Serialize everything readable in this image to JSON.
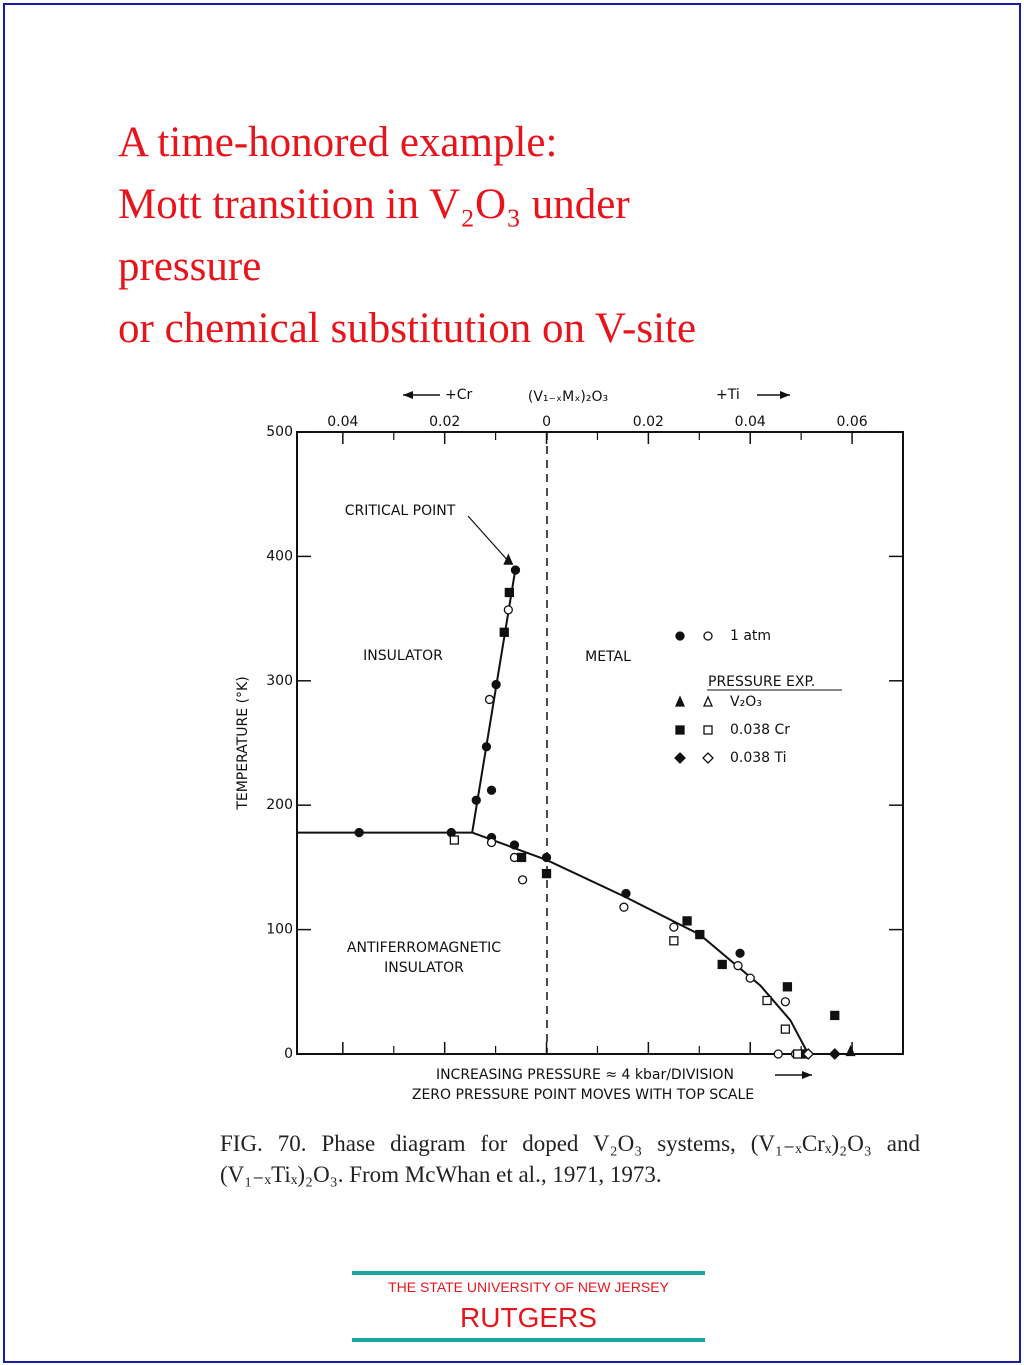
{
  "title_lines": [
    "A time-honored example:",
    "Mott transition in V₂O₃ under",
    "pressure",
    "or chemical substitution on V-site"
  ],
  "chart_data": {
    "type": "scatter",
    "header": [
      "+Cr",
      "(V₁₋ₓMₓ)₂O₃",
      "+Ti"
    ],
    "y_label": "TEMPERATURE (°K)",
    "x_label_lines": [
      "INCREASING PRESSURE ≈ 4 kbar/DIVISION",
      "ZERO PRESSURE POINT MOVES WITH TOP SCALE"
    ],
    "annotations": [
      "CRITICAL POINT",
      "INSULATOR",
      "METAL",
      "ANTIFERROMAGNETIC",
      "INSULATOR"
    ],
    "legend_title": "PRESSURE EXP.",
    "xlim": [
      -0.049,
      0.07
    ],
    "xticks": [
      {
        "value": -0.04,
        "label": "0.04"
      },
      {
        "value": -0.02,
        "label": "0.02"
      },
      0,
      0.02,
      0.04,
      0.06
    ],
    "xminor": [
      -0.03,
      -0.01,
      0.01,
      0.03,
      0.05
    ],
    "ylim": [
      0,
      500
    ],
    "yticks": [
      0,
      100,
      200,
      300,
      400,
      500
    ],
    "boundaries": [
      {
        "x": [
          -0.049,
          -0.0146
        ],
        "values": [
          178,
          178
        ]
      },
      {
        "x": [
          -0.0146,
          -0.0061
        ],
        "values": [
          178,
          390
        ]
      },
      {
        "x": [
          -0.0146,
          0,
          0.0156,
          0.0301,
          0.042,
          0.0479,
          0.0514
        ],
        "values": [
          178,
          156,
          126,
          96,
          55,
          27,
          0
        ]
      }
    ],
    "series": [
      {
        "name": "1 atm",
        "marker": "circle",
        "color": "#111",
        "x": [
          -0.0368,
          -0.0187,
          -0.0061,
          -0.0099,
          -0.0118,
          -0.0108,
          -0.0138,
          -0.0108,
          -0.0063,
          0,
          0.0156,
          0.038
        ],
        "values": [
          178,
          178,
          389,
          297,
          247,
          212,
          204,
          174,
          168,
          158,
          129,
          81
        ],
        "x_open": [
          -0.0075,
          -0.0112,
          -0.0108,
          -0.0063,
          -0.0047,
          0.0152,
          0.025,
          0.0376,
          0.04,
          0.0469,
          0.0455,
          0.0489
        ],
        "values_open": [
          357,
          285,
          170,
          158,
          140,
          118,
          102,
          71,
          61,
          42,
          0,
          0
        ]
      },
      {
        "name": "V₂O₃",
        "marker": "triangle",
        "color": "#111",
        "x": [
          -0.0075,
          0.0597
        ],
        "values": [
          397,
          2
        ],
        "x_open": [],
        "values_open": []
      },
      {
        "name": "0.038 Cr",
        "marker": "square",
        "color": "#111",
        "x": [
          -0.0083,
          -0.0073,
          -0.0049,
          0,
          0.0276,
          0.0301,
          0.0345,
          0.0473,
          0.0566,
          0.0508
        ],
        "values": [
          339,
          371,
          158,
          145,
          107,
          96,
          72,
          54,
          31,
          0
        ],
        "x_open": [
          -0.0181,
          0.025,
          0.0433,
          0.0469,
          0.0493
        ],
        "values_open": [
          172,
          91,
          43,
          20,
          0
        ]
      },
      {
        "name": "0.038 Ti",
        "marker": "diamond",
        "color": "#111",
        "x": [
          0.0566
        ],
        "values": [
          0
        ],
        "x_open": [
          0.0514
        ],
        "values_open": [
          0
        ]
      }
    ]
  },
  "caption": "FIG. 70. Phase diagram for doped V₂O₃ systems, (V₁₋ₓCrₓ)₂O₃ and (V₁₋ₓTiₓ)₂O₃. From McWhan et al., 1971, 1973.",
  "footer": {
    "university": "THE STATE UNIVERSITY OF NEW JERSEY",
    "name": "RUTGERS"
  }
}
